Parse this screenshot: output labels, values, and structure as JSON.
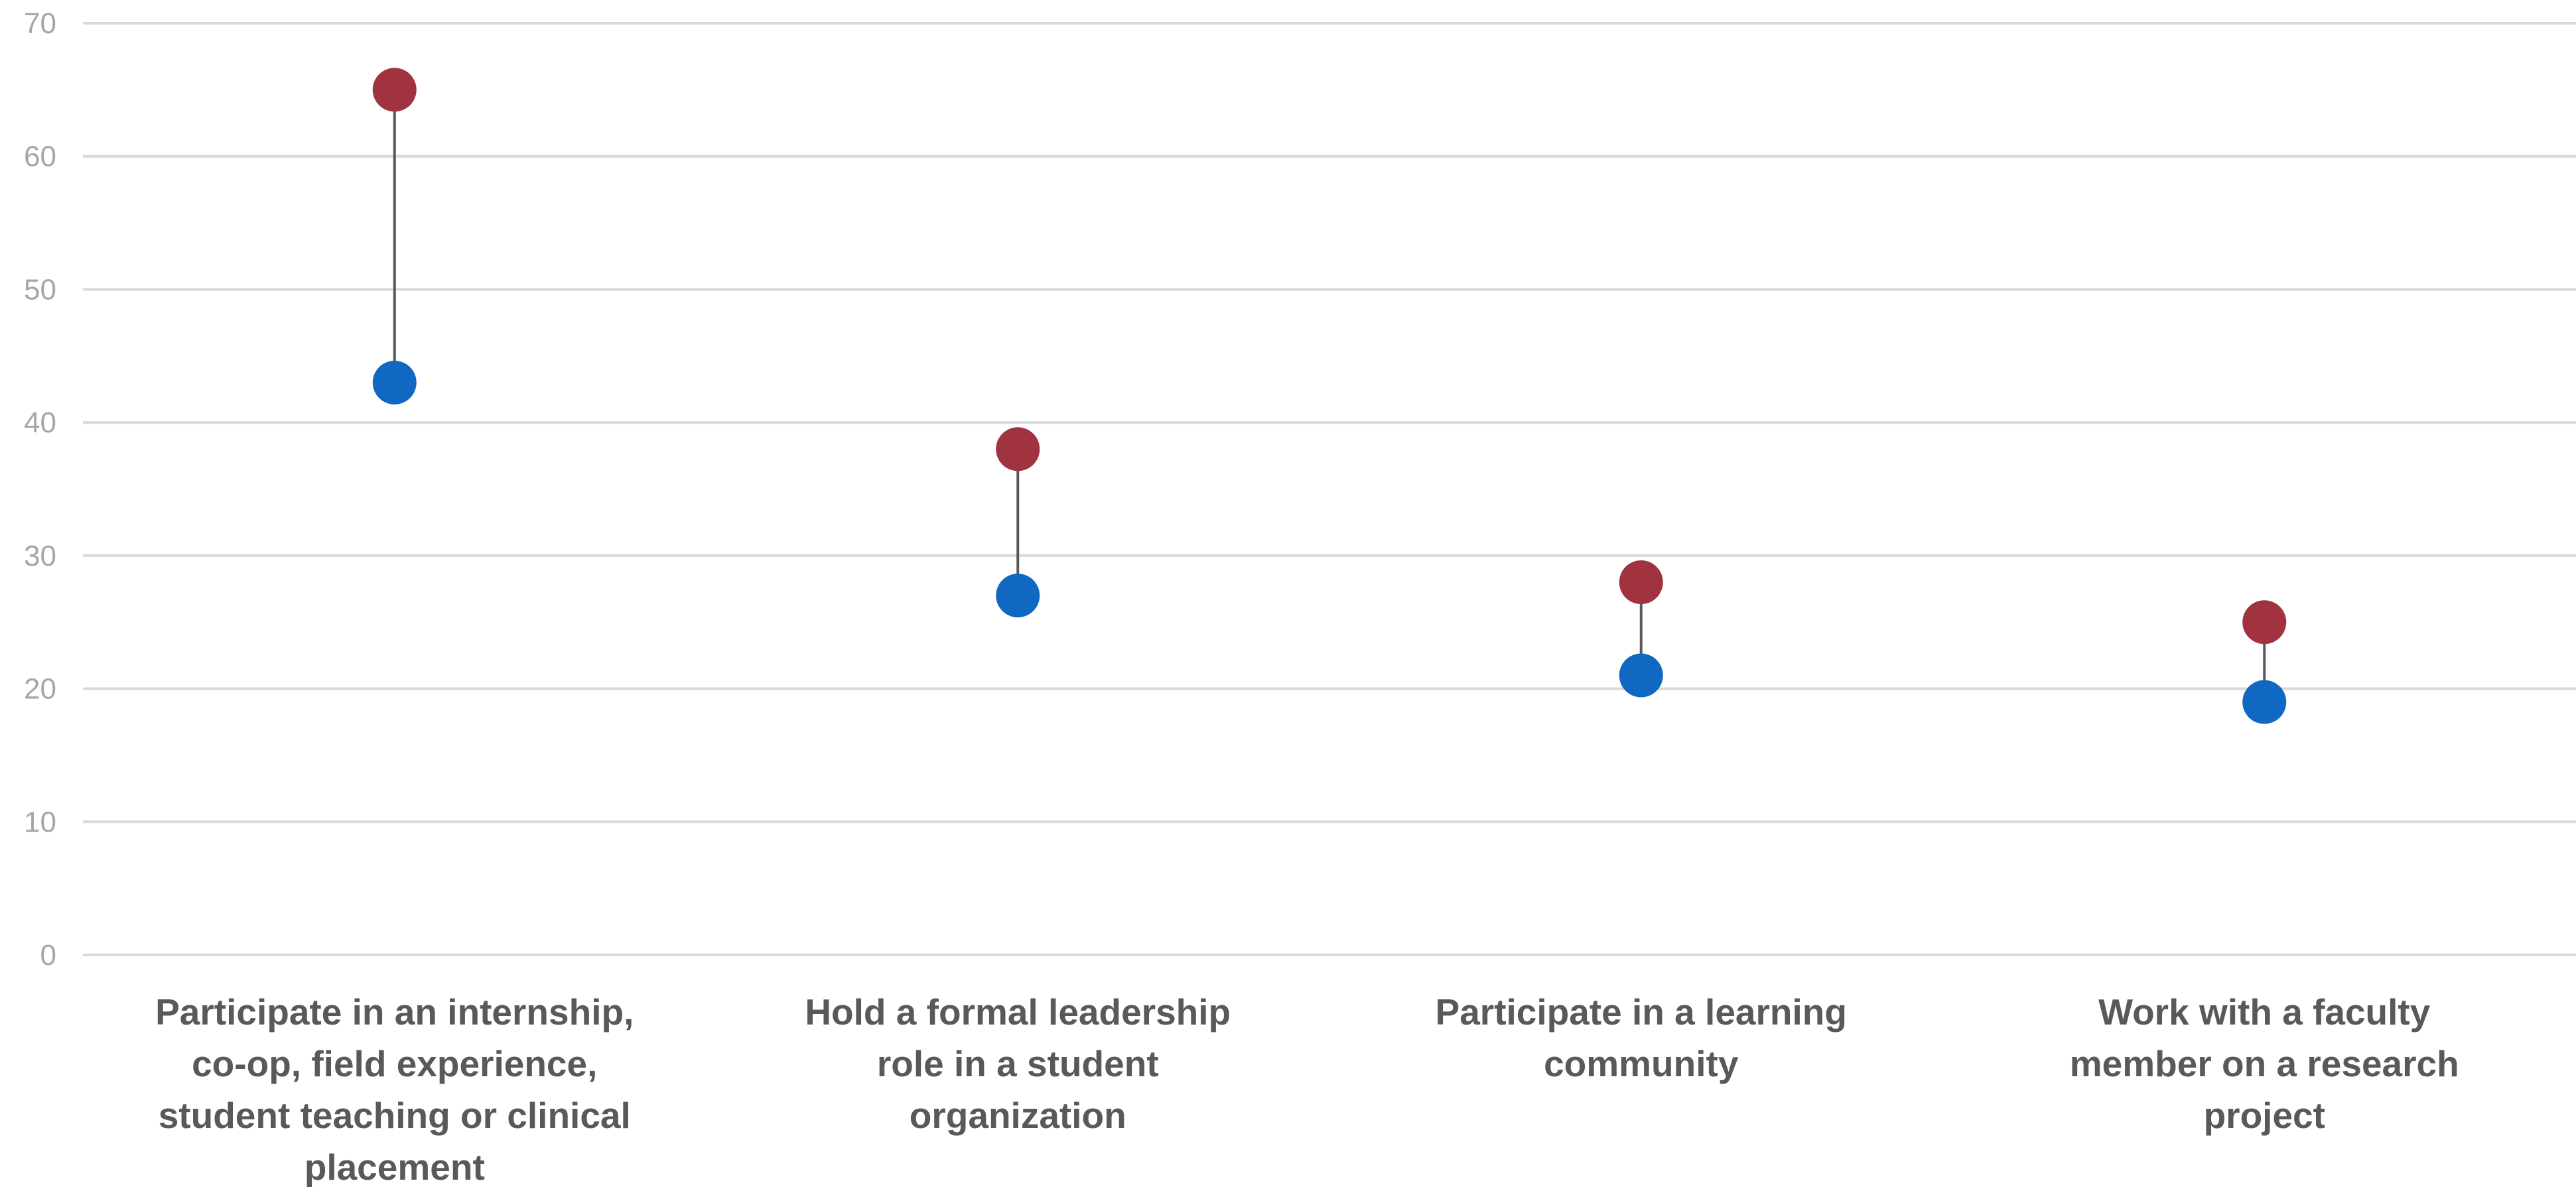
{
  "chart_data": {
    "type": "dot-range",
    "title": "",
    "xlabel": "",
    "ylabel": "",
    "ylim": [
      0,
      70
    ],
    "yticks": [
      0,
      10,
      20,
      30,
      40,
      50,
      60,
      70
    ],
    "ytick_labels": [
      "0",
      "10",
      "20",
      "30",
      "40",
      "50",
      "60",
      "70"
    ],
    "grid": true,
    "legend": "none",
    "categories": [
      "Participate in an internship, co-op, field experience, student teaching or clinical placement",
      "Hold a formal leadership role in a student organization",
      "Participate in a learning community",
      "Work with a faculty member on a research project"
    ],
    "category_lines": [
      [
        "Participate in an internship,",
        "co-op, field experience,",
        "student teaching or clinical",
        "placement"
      ],
      [
        "Hold a formal leadership",
        "role in a student",
        "organization"
      ],
      [
        "Participate in a learning",
        "community"
      ],
      [
        "Work with a faculty",
        "member on a research",
        "project"
      ]
    ],
    "series": [
      {
        "values": [
          65,
          38,
          28,
          25
        ],
        "color": "#a0333f"
      },
      {
        "values": [
          43,
          27,
          21,
          19
        ],
        "color": "#1068c2"
      }
    ],
    "colors": {
      "grid": "#d9d9d9",
      "connector": "#595959",
      "tick_text": "#a6a6a6",
      "category_text": "#595959"
    }
  }
}
